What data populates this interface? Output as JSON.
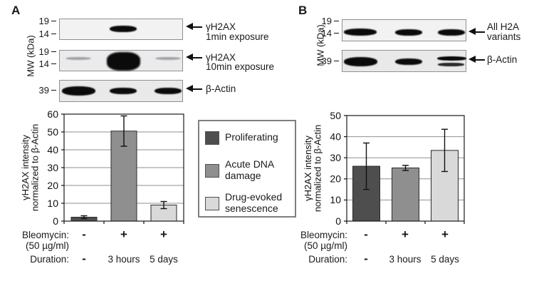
{
  "panels": [
    {
      "letter": "A",
      "mw_label": "MW (kDa)",
      "blots": [
        {
          "name": "gamma-h2ax-1min-blot",
          "markers": [
            "19",
            "14"
          ],
          "label_lines": [
            "γH2AX",
            "1min exposure"
          ],
          "lanes": [
            "none",
            "medium",
            "none"
          ]
        },
        {
          "name": "gamma-h2ax-10min-blot",
          "markers": [
            "19",
            "14"
          ],
          "label_lines": [
            "γH2AX",
            "10min exposure"
          ],
          "lanes": [
            "faint",
            "blob",
            "faint"
          ]
        },
        {
          "name": "beta-actin-blot-a",
          "markers": [
            "39"
          ],
          "label_lines": [
            "β-Actin"
          ],
          "lanes": [
            "strong-wide",
            "medium",
            "medium"
          ]
        }
      ]
    },
    {
      "letter": "B",
      "mw_label": "MW (kDa)",
      "blots": [
        {
          "name": "all-h2a-variants-blot",
          "markers": [
            "19",
            "14"
          ],
          "label_lines": [
            "All H2A",
            "variants"
          ],
          "lanes": [
            "strong",
            "medium",
            "medium"
          ]
        },
        {
          "name": "beta-actin-blot-b",
          "markers": [
            "39"
          ],
          "label_lines": [
            "β-Actin"
          ],
          "lanes": [
            "strong-wide",
            "medium",
            "strong-double"
          ]
        }
      ]
    }
  ],
  "legend": {
    "items": [
      {
        "label_lines": [
          "Proliferating"
        ],
        "color": "#4e4e4e"
      },
      {
        "label_lines": [
          "Acute DNA",
          "damage"
        ],
        "color": "#8f8f8f"
      },
      {
        "label_lines": [
          "Drug-evoked",
          "senescence"
        ],
        "color": "#d9d9d9"
      }
    ]
  },
  "chart_data": [
    {
      "type": "bar",
      "panel": "A",
      "categories": [
        "Proliferating",
        "Acute DNA damage",
        "Drug-evoked senescence"
      ],
      "values": [
        2.2,
        50.5,
        9
      ],
      "error_bars": [
        0.8,
        8.5,
        2
      ],
      "bar_colors": [
        "#4e4e4e",
        "#8f8f8f",
        "#d9d9d9"
      ],
      "ylabel_lines": [
        "γH2AX intensity",
        "normalized to β-Actin"
      ],
      "ylim": [
        0,
        60
      ],
      "yticks": [
        0,
        10,
        20,
        30,
        40,
        50,
        60
      ],
      "grid": true,
      "legend_position": "right-of-chart",
      "x_annotations": [
        {
          "label": "Bleomycin:",
          "label2": "(50 µg/ml)",
          "values": [
            "-",
            "+",
            "+"
          ]
        },
        {
          "label": "Duration:",
          "values": [
            "-",
            "3 hours",
            "5 days"
          ]
        }
      ]
    },
    {
      "type": "bar",
      "panel": "B",
      "categories": [
        "Proliferating",
        "Acute DNA damage",
        "Drug-evoked senescence"
      ],
      "values": [
        26,
        25.2,
        33.5
      ],
      "error_bars": [
        11,
        1.2,
        10
      ],
      "bar_colors": [
        "#4e4e4e",
        "#8f8f8f",
        "#d9d9d9"
      ],
      "ylabel_lines": [
        "γH2AX intensity",
        "normalized to β-Actin"
      ],
      "ylim": [
        0,
        50
      ],
      "yticks": [
        0,
        10,
        20,
        30,
        40,
        50
      ],
      "grid": true,
      "legend_position": "none",
      "x_annotations": [
        {
          "label": "Bleomycin:",
          "label2": "(50 µg/ml)",
          "values": [
            "-",
            "+",
            "+"
          ]
        },
        {
          "label": "Duration:",
          "values": [
            "-",
            "3 hours",
            "5 days"
          ]
        }
      ]
    }
  ]
}
